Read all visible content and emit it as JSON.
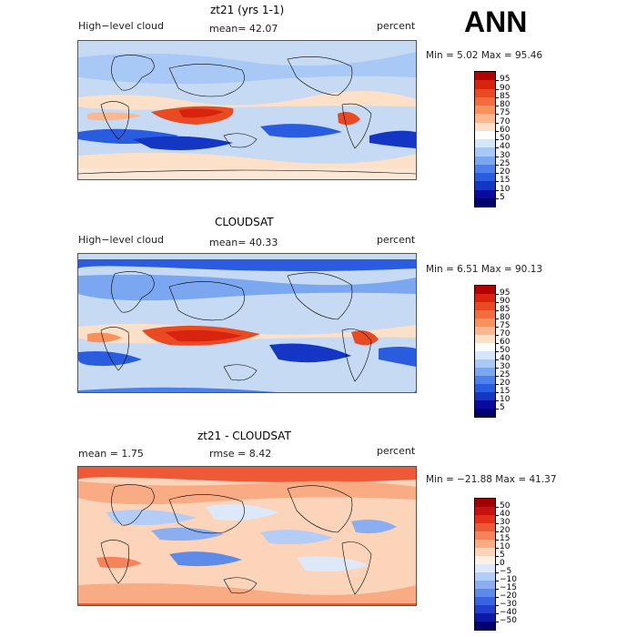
{
  "season": "ANN",
  "panels": [
    {
      "id": "model",
      "title": "zt21 (yrs 1-1)",
      "left_label": "High−level cloud",
      "center_label": "mean=  42.07",
      "units": "percent",
      "stats": "Min =    5.02  Max =   95.46",
      "colorbar_labels": [
        "95",
        "90",
        "85",
        "80",
        "75",
        "70",
        "60",
        "50",
        "40",
        "30",
        "25",
        "20",
        "15",
        "10",
        "5"
      ]
    },
    {
      "id": "obs",
      "title": "CLOUDSAT",
      "left_label": "High−level cloud",
      "center_label": "mean=  40.33",
      "units": "percent",
      "stats": "Min =    6.51  Max =   90.13",
      "colorbar_labels": [
        "95",
        "90",
        "85",
        "80",
        "75",
        "70",
        "60",
        "50",
        "40",
        "30",
        "25",
        "20",
        "15",
        "10",
        "5"
      ]
    },
    {
      "id": "diff",
      "title": "zt21 - CLOUDSAT",
      "left_label": "mean =    1.75",
      "center_label": "rmse =    8.42",
      "units": "percent",
      "stats": "Min = −21.88  Max =   41.37",
      "colorbar_labels": [
        "50",
        "40",
        "30",
        "20",
        "15",
        "10",
        "5",
        "0",
        "−5",
        "−10",
        "−15",
        "−20",
        "−30",
        "−40",
        "−50"
      ]
    }
  ],
  "colors": {
    "cloud_scale": [
      "#b40000",
      "#d8230e",
      "#ea4a22",
      "#f26c3e",
      "#f7915e",
      "#fbb78f",
      "#fde0c8",
      "#ffffff",
      "#d6e6fb",
      "#a8c8f5",
      "#7aa7f0",
      "#4c80ea",
      "#2a5ce0",
      "#1336c4",
      "#0a0aa0",
      "#00006e"
    ],
    "diff_scale": [
      "#a00000",
      "#c81010",
      "#e32f1a",
      "#ef5a36",
      "#f5845c",
      "#f9ab84",
      "#fcd4ba",
      "#fff0e6",
      "#dde9fb",
      "#b3cdf6",
      "#8aaef0",
      "#5e8aea",
      "#3964e0",
      "#1f3fcc",
      "#0b1aa4",
      "#000073"
    ],
    "coast": "#000000"
  }
}
